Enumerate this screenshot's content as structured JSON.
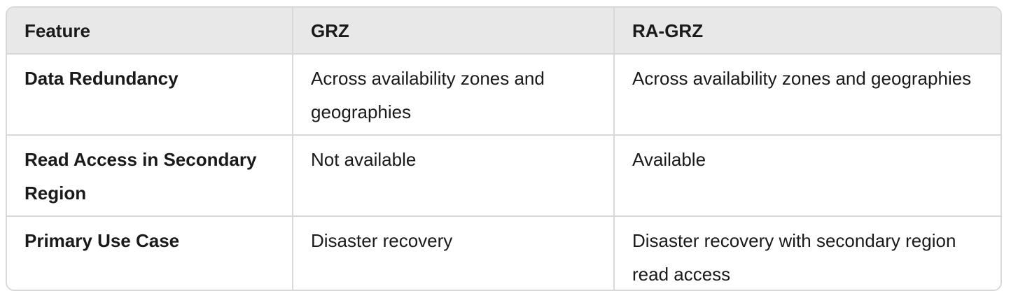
{
  "table": {
    "headers": [
      "Feature",
      "GRZ",
      "RA-GRZ"
    ],
    "rows": [
      {
        "feature": "Data Redundancy",
        "grz": "Across availability zones and geographies",
        "ra_grz": "Across availability zones and geographies"
      },
      {
        "feature": "Read Access in Secondary Region",
        "grz": "Not available",
        "ra_grz": "Available"
      },
      {
        "feature": "Primary Use Case",
        "grz": "Disaster recovery",
        "ra_grz": "Disaster recovery with secondary region read access"
      }
    ]
  }
}
